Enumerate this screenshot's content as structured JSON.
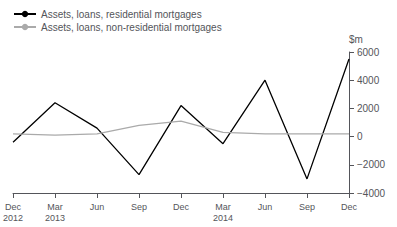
{
  "chart_data": {
    "type": "line",
    "categories": [
      "Dec\n2012",
      "Mar\n2013",
      "Jun",
      "Sep",
      "Dec",
      "Mar\n2014",
      "Jun",
      "Sep",
      "Dec"
    ],
    "series": [
      {
        "name": "Assets, loans, residential mortgages",
        "color": "#000000",
        "values": [
          -400,
          2400,
          600,
          -2700,
          2200,
          -500,
          4000,
          -3000,
          5500
        ]
      },
      {
        "name": "Assets, loans, non-residential mortgages",
        "color": "#aaaaaa",
        "values": [
          200,
          100,
          200,
          800,
          1100,
          300,
          200,
          200,
          200
        ]
      }
    ],
    "ylabel": "$m",
    "ylim": [
      -4000,
      6000
    ],
    "yticks": [
      {
        "value": -4000,
        "label": "−4000"
      },
      {
        "value": -2000,
        "label": "−2000"
      },
      0,
      2000,
      4000,
      6000
    ],
    "legend": "upper left",
    "grid": false
  }
}
